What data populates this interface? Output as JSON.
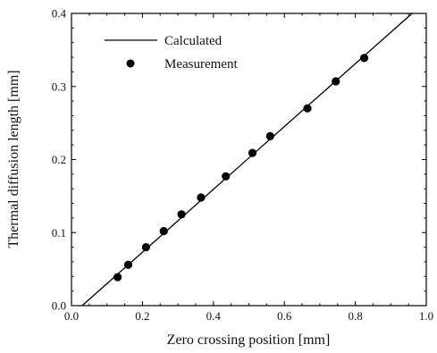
{
  "chart_data": {
    "type": "scatter",
    "title": "",
    "xlabel": "Zero crossing position [mm]",
    "ylabel": "Thermal diffusion length [mm]",
    "xlim": [
      0.0,
      1.0
    ],
    "ylim": [
      0.0,
      0.4
    ],
    "x_ticks": [
      "0.0",
      "0.2",
      "0.4",
      "0.6",
      "0.8",
      "1.0"
    ],
    "y_ticks": [
      "0.0",
      "0.1",
      "0.2",
      "0.3",
      "0.4"
    ],
    "grid": false,
    "legend_position": "top-left",
    "series": [
      {
        "name": "Calculated",
        "kind": "line",
        "color": "#000000",
        "x": [
          0.03,
          0.96
        ],
        "y": [
          0.0,
          0.4
        ]
      },
      {
        "name": "Measurement",
        "kind": "scatter",
        "color": "#000000",
        "x": [
          0.13,
          0.16,
          0.21,
          0.26,
          0.31,
          0.365,
          0.435,
          0.51,
          0.56,
          0.665,
          0.745,
          0.825
        ],
        "y": [
          0.039,
          0.056,
          0.08,
          0.102,
          0.125,
          0.148,
          0.177,
          0.209,
          0.232,
          0.27,
          0.307,
          0.339
        ]
      }
    ]
  }
}
